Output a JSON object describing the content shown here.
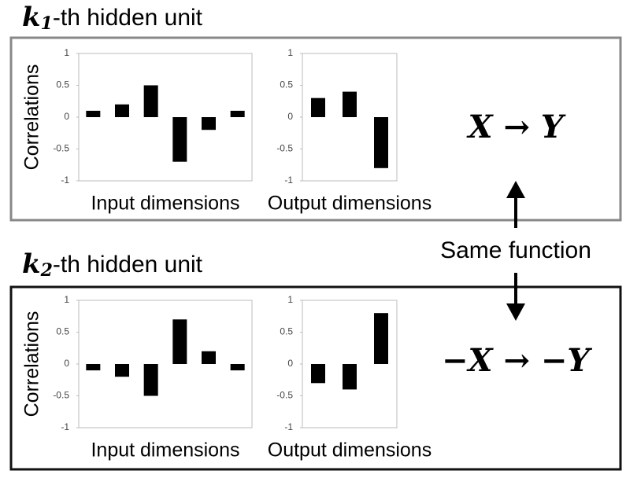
{
  "sections": [
    {
      "title": {
        "var": "k",
        "sub": "1",
        "rest": "-th hidden unit"
      },
      "formula": "X → Y"
    },
    {
      "title": {
        "var": "k",
        "sub": "2",
        "rest": "-th hidden unit"
      },
      "formula": "−X → −Y"
    }
  ],
  "connector": "Same function",
  "chart_data": [
    {
      "type": "bar",
      "ylabel": "Correlations",
      "xlabel": "Input dimensions",
      "values": [
        0.1,
        0.2,
        0.5,
        -0.7,
        -0.2,
        0.1
      ],
      "color": "#000000",
      "ylim": [
        -1,
        1
      ],
      "yticks": [
        1,
        0.5,
        0,
        -0.5,
        -1
      ]
    },
    {
      "type": "bar",
      "xlabel": "Output dimensions",
      "values": [
        0.3,
        0.4,
        -0.8
      ],
      "color": "#000000",
      "ylim": [
        -1,
        1
      ],
      "yticks": [
        1,
        0.5,
        0,
        -0.5,
        -1
      ]
    },
    {
      "type": "bar",
      "ylabel": "Correlations",
      "xlabel": "Input dimensions",
      "values": [
        -0.1,
        -0.2,
        -0.5,
        0.7,
        0.2,
        -0.1
      ],
      "color": "#000000",
      "ylim": [
        -1,
        1
      ],
      "yticks": [
        1,
        0.5,
        0,
        -0.5,
        -1
      ]
    },
    {
      "type": "bar",
      "xlabel": "Output dimensions",
      "values": [
        -0.3,
        -0.4,
        0.8
      ],
      "color": "#000000",
      "ylim": [
        -1,
        1
      ],
      "yticks": [
        1,
        0.5,
        0,
        -0.5,
        -1
      ]
    }
  ]
}
